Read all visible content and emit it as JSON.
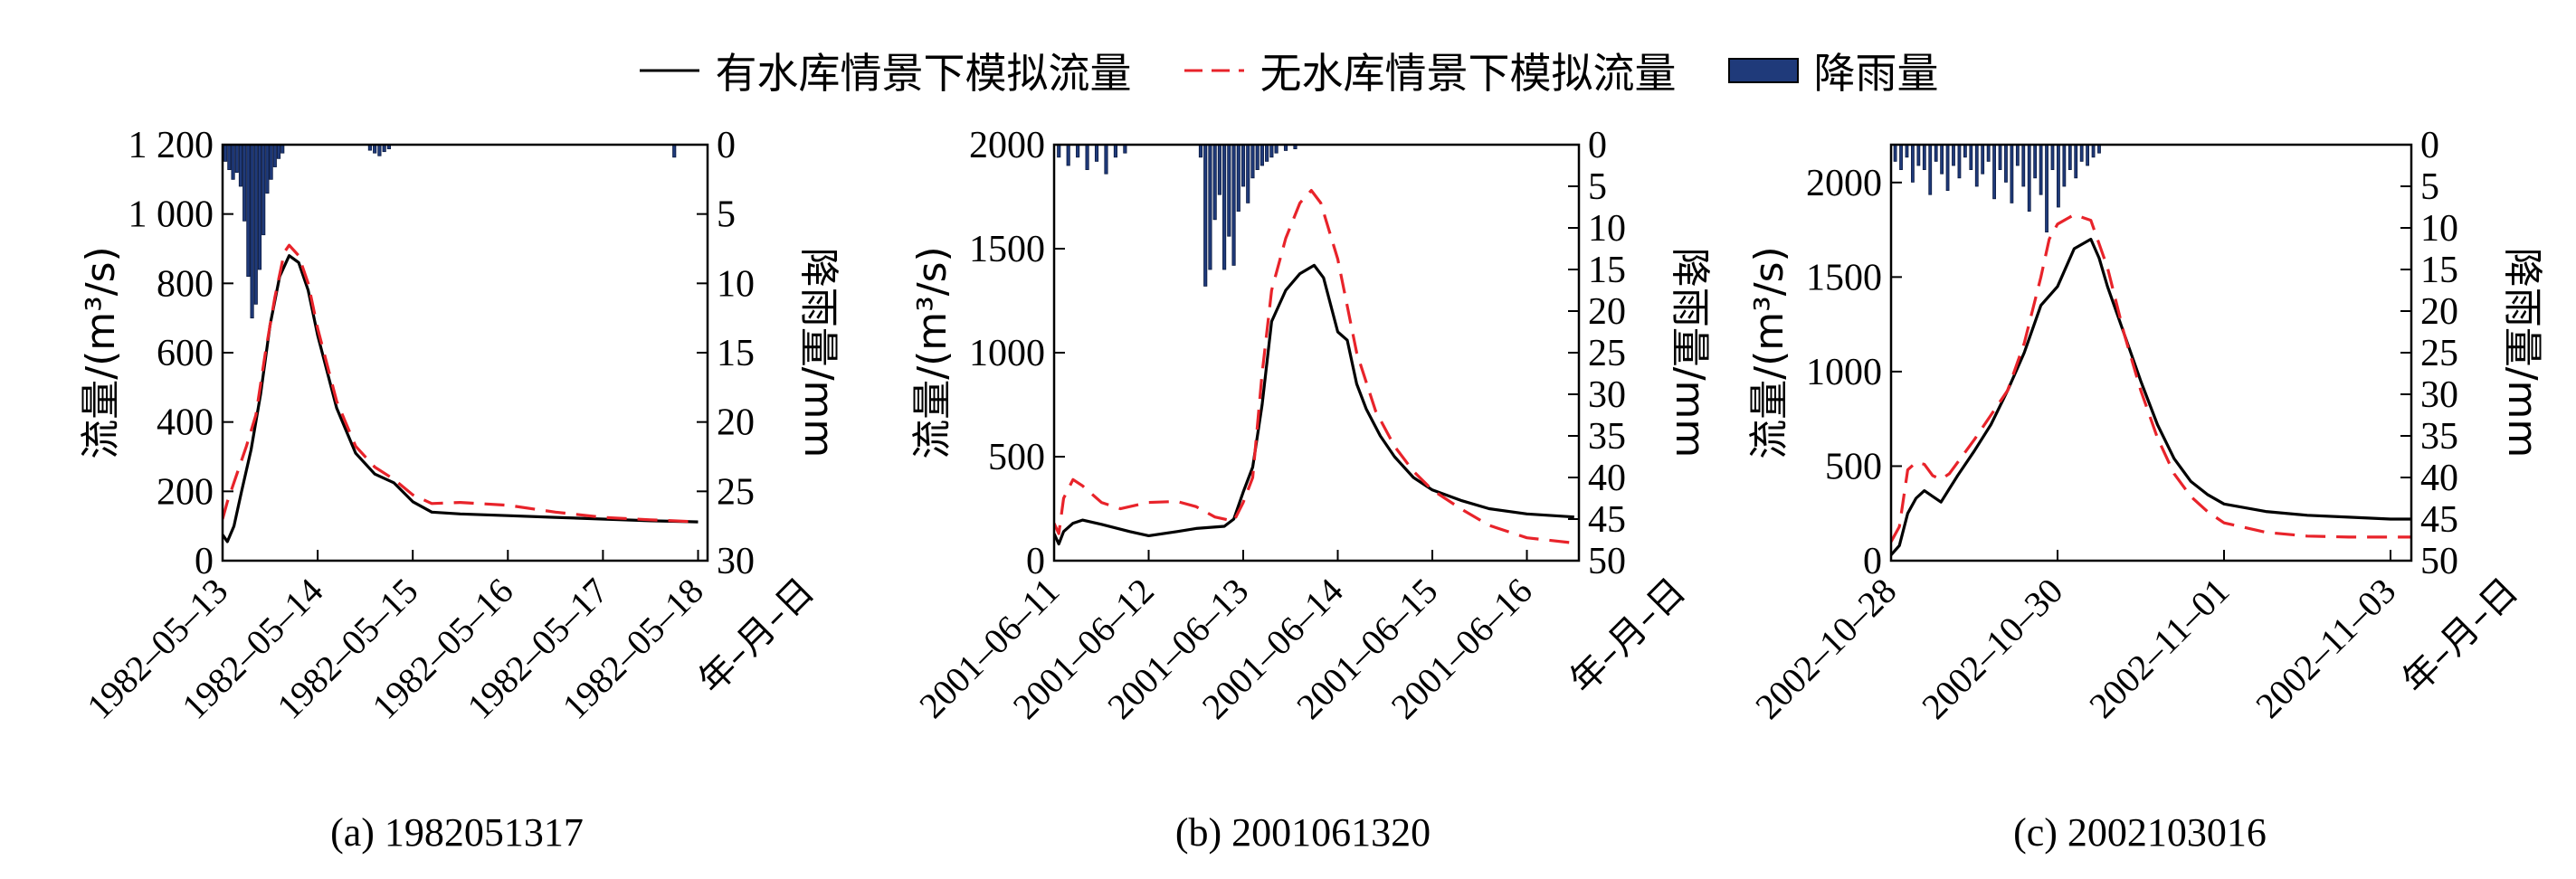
{
  "legend": {
    "with_reservoir": "有水库情景下模拟流量",
    "without_reservoir": "无水库情景下模拟流量",
    "rainfall": "降雨量"
  },
  "colors": {
    "with_reservoir": "#000000",
    "without_reservoir": "#e8232a",
    "rainfall": "#1f3a7a"
  },
  "chart_data": [
    {
      "type": "line",
      "caption": "(a) 1982051317",
      "ylabel": "流量/(m³/s)",
      "y2label": "降雨量/mm",
      "xlabel": "年–月–日",
      "x_unit": "day",
      "xlim": [
        0,
        5.1
      ],
      "x_ticks": [
        0,
        1,
        2,
        3,
        4,
        5
      ],
      "x_tick_labels": [
        "1982–05–13",
        "1982–05–14",
        "1982–05–15",
        "1982–05–16",
        "1982–05–17",
        "1982–05–18"
      ],
      "ylim": [
        0,
        1200
      ],
      "y_ticks": [
        0,
        200,
        400,
        600,
        800,
        1000,
        1200
      ],
      "y_tick_labels": [
        "0",
        "200",
        "400",
        "600",
        "800",
        "1 000",
        "1 200"
      ],
      "y2lim": [
        0,
        30
      ],
      "y2_ticks": [
        0,
        5,
        10,
        15,
        20,
        25,
        30
      ],
      "y2_tick_labels": [
        "0",
        "5",
        "10",
        "15",
        "20",
        "25",
        "30"
      ],
      "series": [
        {
          "name": "有水库情景下模拟流量",
          "x": [
            0,
            0.05,
            0.12,
            0.2,
            0.3,
            0.4,
            0.5,
            0.6,
            0.7,
            0.8,
            0.9,
            1.0,
            1.2,
            1.4,
            1.6,
            1.8,
            2.0,
            2.2,
            2.5,
            3.0,
            3.5,
            4.0,
            4.5,
            5.0
          ],
          "y": [
            75,
            55,
            100,
            200,
            320,
            480,
            680,
            820,
            880,
            860,
            780,
            650,
            440,
            310,
            250,
            225,
            170,
            140,
            135,
            130,
            125,
            120,
            115,
            112
          ]
        },
        {
          "name": "无水库情景下模拟流量",
          "x": [
            0,
            0.05,
            0.15,
            0.25,
            0.35,
            0.45,
            0.55,
            0.65,
            0.7,
            0.8,
            0.9,
            1.0,
            1.2,
            1.4,
            1.6,
            1.8,
            2.0,
            2.2,
            2.5,
            3.0,
            3.5,
            4.0,
            4.5,
            5.0
          ],
          "y": [
            120,
            170,
            250,
            330,
            420,
            600,
            760,
            890,
            910,
            880,
            800,
            670,
            460,
            330,
            270,
            235,
            190,
            165,
            168,
            160,
            140,
            125,
            118,
            112
          ]
        }
      ],
      "rainfall": {
        "x": [
          0.03,
          0.07,
          0.11,
          0.15,
          0.19,
          0.23,
          0.27,
          0.31,
          0.35,
          0.39,
          0.43,
          0.47,
          0.51,
          0.55,
          0.59,
          0.63,
          1.55,
          1.6,
          1.65,
          1.7,
          1.75,
          4.75
        ],
        "mm": [
          1.2,
          1.8,
          2.5,
          2.0,
          3.0,
          5.5,
          9.5,
          12.5,
          11.5,
          9.0,
          6.5,
          3.5,
          2.5,
          1.6,
          1.0,
          0.6,
          0.4,
          0.6,
          0.8,
          0.5,
          0.3,
          0.9
        ]
      }
    },
    {
      "type": "line",
      "caption": "(b) 2001061320",
      "ylabel": "流量/(m³/s)",
      "y2label": "降雨量/mm",
      "xlabel": "年–月–日",
      "x_unit": "day",
      "xlim": [
        0,
        5.55
      ],
      "x_ticks": [
        0,
        1,
        2,
        3,
        4,
        5
      ],
      "x_tick_labels": [
        "2001–06–11",
        "2001–06–12",
        "2001–06–13",
        "2001–06–14",
        "2001–06–15",
        "2001–06–16"
      ],
      "ylim": [
        0,
        2000
      ],
      "y_ticks": [
        0,
        500,
        1000,
        1500,
        2000
      ],
      "y_tick_labels": [
        "0",
        "500",
        "1000",
        "1500",
        "2000"
      ],
      "y2lim": [
        0,
        50
      ],
      "y2_ticks": [
        0,
        5,
        10,
        15,
        20,
        25,
        30,
        35,
        40,
        45,
        50
      ],
      "y2_tick_labels": [
        "0",
        "5",
        "10",
        "15",
        "20",
        "25",
        "30",
        "35",
        "40",
        "45",
        "50"
      ],
      "series": [
        {
          "name": "有水库情景下模拟流量",
          "x": [
            0,
            0.05,
            0.1,
            0.2,
            0.3,
            0.5,
            0.8,
            1.0,
            1.3,
            1.5,
            1.8,
            1.9,
            2.0,
            2.1,
            2.2,
            2.3,
            2.45,
            2.6,
            2.75,
            2.85,
            3.0,
            3.1,
            3.2,
            3.3,
            3.45,
            3.6,
            3.8,
            4.0,
            4.3,
            4.6,
            5.0,
            5.5
          ],
          "y": [
            130,
            80,
            140,
            180,
            195,
            175,
            140,
            120,
            140,
            155,
            165,
            200,
            330,
            450,
            750,
            1150,
            1300,
            1380,
            1420,
            1360,
            1100,
            1060,
            850,
            730,
            600,
            500,
            400,
            340,
            290,
            250,
            225,
            210
          ]
        },
        {
          "name": "无水库情景下模拟流量",
          "x": [
            0,
            0.05,
            0.1,
            0.2,
            0.3,
            0.5,
            0.7,
            1.0,
            1.3,
            1.5,
            1.7,
            1.9,
            2.0,
            2.1,
            2.2,
            2.3,
            2.45,
            2.6,
            2.72,
            2.82,
            3.0,
            3.2,
            3.4,
            3.6,
            3.8,
            4.0,
            4.3,
            4.6,
            5.0,
            5.5
          ],
          "y": [
            180,
            130,
            300,
            390,
            360,
            280,
            250,
            280,
            285,
            260,
            210,
            190,
            280,
            400,
            900,
            1300,
            1550,
            1720,
            1780,
            1720,
            1450,
            1000,
            720,
            550,
            430,
            340,
            250,
            170,
            110,
            85
          ]
        }
      ],
      "rainfall": {
        "x": [
          0.05,
          0.15,
          0.25,
          0.35,
          0.45,
          0.55,
          0.65,
          0.75,
          1.55,
          1.6,
          1.65,
          1.7,
          1.75,
          1.8,
          1.85,
          1.9,
          1.95,
          2.0,
          2.05,
          2.1,
          2.15,
          2.2,
          2.25,
          2.3,
          2.35,
          2.45,
          2.55
        ],
        "mm": [
          1.5,
          2.5,
          1.5,
          3.0,
          2.0,
          3.5,
          1.5,
          1.0,
          1.5,
          17.0,
          15.0,
          9.0,
          6.0,
          15.0,
          11.0,
          14.5,
          8.0,
          5.0,
          7.0,
          4.0,
          3.0,
          2.5,
          2.0,
          1.5,
          1.0,
          0.7,
          0.5
        ]
      }
    },
    {
      "type": "line",
      "caption": "(c) 2002103016",
      "ylabel": "流量/(m³/s)",
      "y2label": "降雨量/mm",
      "xlabel": "年–月–日",
      "x_unit": "day",
      "xlim": [
        0,
        6.25
      ],
      "x_ticks": [
        0,
        2,
        4,
        6
      ],
      "x_tick_labels": [
        "2002–10–28",
        "2002–10–30",
        "2002–11–01",
        "2002–11–03"
      ],
      "ylim": [
        0,
        2200
      ],
      "y_ticks": [
        0,
        500,
        1000,
        1500,
        2000
      ],
      "y_tick_labels": [
        "0",
        "500",
        "1000",
        "1500",
        "2000"
      ],
      "y2lim": [
        0,
        50
      ],
      "y2_ticks": [
        0,
        5,
        10,
        15,
        20,
        25,
        30,
        35,
        40,
        45,
        50
      ],
      "y2_tick_labels": [
        "0",
        "5",
        "10",
        "15",
        "20",
        "25",
        "30",
        "35",
        "40",
        "45",
        "50"
      ],
      "series": [
        {
          "name": "有水库情景下模拟流量",
          "x": [
            0,
            0.1,
            0.2,
            0.3,
            0.4,
            0.5,
            0.6,
            0.7,
            0.8,
            1.0,
            1.2,
            1.4,
            1.6,
            1.8,
            2.0,
            2.2,
            2.4,
            2.5,
            2.6,
            2.8,
            3.0,
            3.2,
            3.4,
            3.6,
            3.8,
            4.0,
            4.5,
            5.0,
            5.5,
            6.0,
            6.25
          ],
          "y": [
            30,
            80,
            250,
            330,
            370,
            340,
            310,
            380,
            450,
            580,
            720,
            900,
            1100,
            1350,
            1450,
            1650,
            1700,
            1600,
            1450,
            1200,
            950,
            720,
            540,
            420,
            350,
            300,
            260,
            240,
            230,
            220,
            220
          ]
        },
        {
          "name": "无水库情景下模拟流量",
          "x": [
            0,
            0.1,
            0.2,
            0.3,
            0.4,
            0.5,
            0.6,
            0.7,
            0.8,
            1.0,
            1.2,
            1.4,
            1.6,
            1.8,
            1.9,
            2.0,
            2.2,
            2.4,
            2.6,
            2.8,
            3.0,
            3.2,
            3.4,
            3.6,
            3.8,
            4.0,
            4.5,
            5.0,
            5.5,
            6.0,
            6.25
          ],
          "y": [
            100,
            180,
            480,
            520,
            510,
            450,
            430,
            460,
            520,
            640,
            770,
            900,
            1150,
            1500,
            1700,
            1780,
            1830,
            1800,
            1550,
            1200,
            900,
            650,
            460,
            340,
            260,
            200,
            150,
            130,
            125,
            125,
            125
          ]
        }
      ],
      "rainfall": {
        "x": [
          0.05,
          0.12,
          0.19,
          0.26,
          0.33,
          0.4,
          0.47,
          0.54,
          0.61,
          0.68,
          0.75,
          0.82,
          0.89,
          0.96,
          1.03,
          1.1,
          1.17,
          1.24,
          1.31,
          1.38,
          1.45,
          1.52,
          1.59,
          1.66,
          1.73,
          1.8,
          1.87,
          1.94,
          2.01,
          2.08,
          2.15,
          2.22,
          2.29,
          2.36,
          2.43,
          2.5
        ],
        "mm": [
          2.0,
          3.0,
          1.5,
          4.5,
          2.5,
          3.0,
          6.0,
          2.0,
          3.5,
          5.5,
          2.5,
          4.0,
          1.5,
          3.0,
          5.0,
          3.5,
          2.0,
          6.5,
          3.0,
          4.5,
          7.0,
          2.5,
          5.0,
          8.0,
          4.0,
          6.0,
          10.5,
          3.0,
          7.5,
          5.0,
          3.0,
          4.0,
          2.0,
          2.5,
          1.5,
          1.0
        ]
      }
    }
  ]
}
